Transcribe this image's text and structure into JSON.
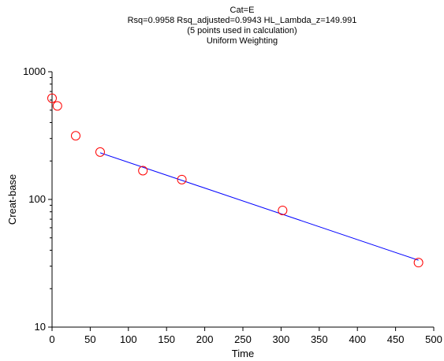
{
  "chart_data": {
    "type": "scatter",
    "title_lines": [
      "Cat=E",
      "Rsq=0.9958  Rsq_adjusted=0.9943  HL_Lambda_z=149.991",
      "(5 points used in calculation)",
      "Uniform Weighting"
    ],
    "xlabel": "Time",
    "ylabel": "Creat-base",
    "xlim": [
      0,
      500
    ],
    "ylim": [
      10,
      1000
    ],
    "y_scale": "log",
    "grid": false,
    "x_ticks": [
      0,
      50,
      100,
      150,
      200,
      250,
      300,
      350,
      400,
      450,
      500
    ],
    "y_ticks": [
      10,
      100,
      1000
    ],
    "series": [
      {
        "marker": "open-circle",
        "color": "#ff0000",
        "x": [
          0,
          7,
          31,
          63,
          119,
          170,
          302,
          480
        ],
        "y": [
          620,
          540,
          315,
          235,
          168,
          143,
          82,
          32
        ]
      }
    ],
    "fit_line": {
      "color": "#0000ff",
      "x": [
        63,
        480
      ],
      "y": [
        232,
        33.4
      ]
    }
  }
}
